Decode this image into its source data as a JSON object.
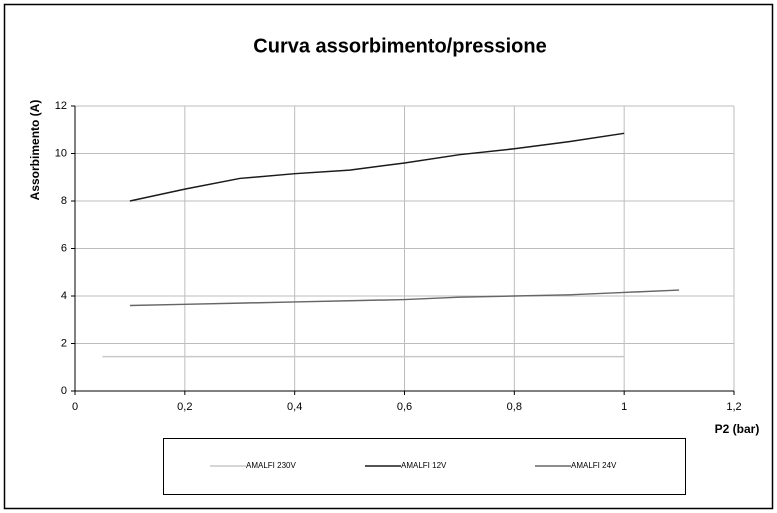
{
  "chart_data": {
    "type": "line",
    "title": "Curva assorbimento/pressione",
    "x_label": "P2 (bar)",
    "y_label": "Assorbimento (A)",
    "xlim": [
      0,
      1.2
    ],
    "xticks": [
      0,
      {
        "value": 0.2,
        "label": "0,2"
      },
      {
        "value": 0.4,
        "label": "0,4"
      },
      {
        "value": 0.6,
        "label": "0,6"
      },
      {
        "value": 0.8,
        "label": "0,8"
      },
      1,
      {
        "value": 1.2,
        "label": "1,2"
      }
    ],
    "ylim": [
      0,
      12
    ],
    "yticks": [
      0,
      2,
      4,
      6,
      8,
      10,
      12
    ],
    "grid": true,
    "series": [
      {
        "name": "AMALFI 230V",
        "color": "#c8c8c8",
        "x": [
          0.05,
          1.0
        ],
        "values": [
          1.45,
          1.45
        ]
      },
      {
        "name": "AMALFI 12V",
        "color": "#1a1a1a",
        "x": [
          0.1,
          0.2,
          0.3,
          0.4,
          0.5,
          0.6,
          0.7,
          0.8,
          0.9,
          1.0
        ],
        "values": [
          8.0,
          8.5,
          8.95,
          9.15,
          9.3,
          9.6,
          9.95,
          10.2,
          10.5,
          10.85
        ]
      },
      {
        "name": "AMALFI 24V",
        "color": "#666666",
        "x": [
          0.1,
          0.2,
          0.3,
          0.4,
          0.5,
          0.6,
          0.7,
          0.8,
          0.9,
          1.0,
          1.1
        ],
        "values": [
          3.6,
          3.65,
          3.7,
          3.75,
          3.8,
          3.85,
          3.95,
          4.0,
          4.05,
          4.15,
          4.25
        ]
      }
    ]
  }
}
